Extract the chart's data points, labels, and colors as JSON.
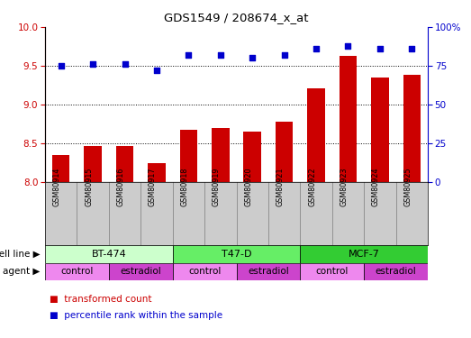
{
  "title": "GDS1549 / 208674_x_at",
  "samples": [
    "GSM80914",
    "GSM80915",
    "GSM80916",
    "GSM80917",
    "GSM80918",
    "GSM80919",
    "GSM80920",
    "GSM80921",
    "GSM80922",
    "GSM80923",
    "GSM80924",
    "GSM80925"
  ],
  "bar_values": [
    8.35,
    8.47,
    8.47,
    8.24,
    8.68,
    8.7,
    8.65,
    8.78,
    9.21,
    9.63,
    9.35,
    9.38
  ],
  "dot_values": [
    75,
    76,
    76,
    72,
    82,
    82,
    80,
    82,
    86,
    88,
    86,
    86
  ],
  "bar_color": "#cc0000",
  "dot_color": "#0000cc",
  "ylim_left": [
    8.0,
    10.0
  ],
  "ylim_right": [
    0,
    100
  ],
  "yticks_left": [
    8.0,
    8.5,
    9.0,
    9.5,
    10.0
  ],
  "yticks_right": [
    0,
    25,
    50,
    75,
    100
  ],
  "grid_values": [
    8.5,
    9.0,
    9.5
  ],
  "cell_lines": [
    {
      "label": "BT-474",
      "start": 0,
      "end": 4,
      "color": "#ccffcc"
    },
    {
      "label": "T47-D",
      "start": 4,
      "end": 8,
      "color": "#66ee66"
    },
    {
      "label": "MCF-7",
      "start": 8,
      "end": 12,
      "color": "#33cc33"
    }
  ],
  "agents": [
    {
      "label": "control",
      "start": 0,
      "end": 2,
      "color": "#ee88ee"
    },
    {
      "label": "estradiol",
      "start": 2,
      "end": 4,
      "color": "#cc44cc"
    },
    {
      "label": "control",
      "start": 4,
      "end": 6,
      "color": "#ee88ee"
    },
    {
      "label": "estradiol",
      "start": 6,
      "end": 8,
      "color": "#cc44cc"
    },
    {
      "label": "control",
      "start": 8,
      "end": 10,
      "color": "#ee88ee"
    },
    {
      "label": "estradiol",
      "start": 10,
      "end": 12,
      "color": "#cc44cc"
    }
  ],
  "legend_red_label": "transformed count",
  "legend_blue_label": "percentile rank within the sample",
  "cell_line_label": "cell line",
  "agent_label": "agent",
  "left_axis_color": "#cc0000",
  "right_axis_color": "#0000cc",
  "tick_area_color": "#cccccc"
}
